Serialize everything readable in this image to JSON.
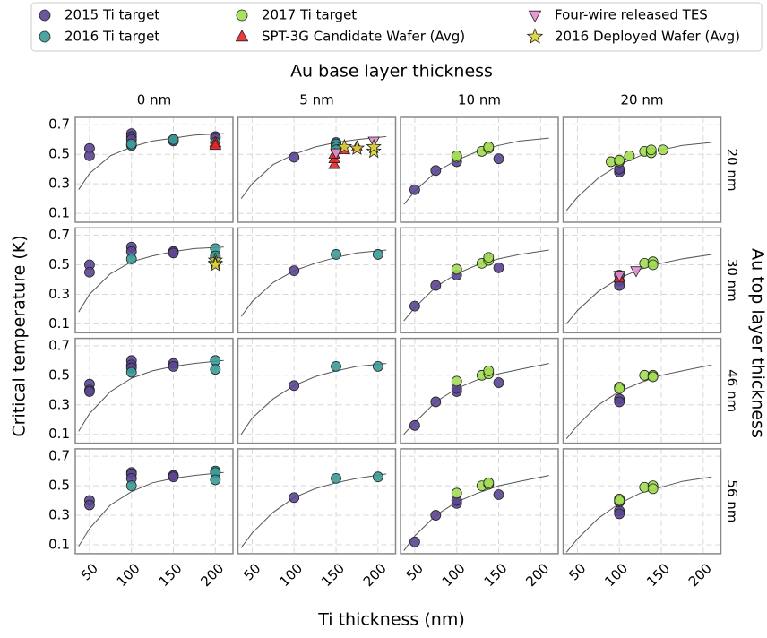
{
  "chart_data": {
    "type": "scatter",
    "col_title": "Au base layer thickness",
    "row_title": "Au top layer thickness",
    "xlabel": "Ti thickness (nm)",
    "ylabel": "Critical temperature (K)",
    "columns": [
      "0 nm",
      "5 nm",
      "10 nm",
      "20 nm"
    ],
    "rows": [
      "20 nm",
      "30 nm",
      "46 nm",
      "56 nm"
    ],
    "xlim": [
      33,
      221
    ],
    "xticks": [
      50,
      100,
      150,
      200
    ],
    "ylim": [
      0.04,
      0.75
    ],
    "yticks": [
      0.1,
      0.3,
      0.5,
      0.7
    ],
    "grid": true,
    "legend": "top",
    "fit_color": "#555555",
    "series": [
      {
        "name": "2015 Ti target",
        "color": "#5b4691",
        "marker": "circle"
      },
      {
        "name": "2016 Ti target",
        "color": "#3a9b98",
        "marker": "circle"
      },
      {
        "name": "2017 Ti target",
        "color": "#a2dd52",
        "marker": "circle"
      },
      {
        "name": "SPT-3G Candidate Wafer (Avg)",
        "color": "#e8262a",
        "marker": "triangle-up"
      },
      {
        "name": "Four-wire released TES",
        "color": "#e48fd2",
        "marker": "triangle-down"
      },
      {
        "name": "2016 Deployed Wafer (Avg)",
        "color": "#d8d23a",
        "marker": "star"
      }
    ],
    "fit_x": [
      37,
      50,
      75,
      100,
      125,
      150,
      175,
      210
    ],
    "panels": [
      {
        "fit": [
          0.26,
          0.37,
          0.49,
          0.55,
          0.59,
          0.61,
          0.63,
          0.64
        ],
        "points": [
          {
            "x": [
              50,
              50,
              100,
              100,
              100,
              150,
              150,
              200,
              200
            ],
            "y": [
              0.54,
              0.49,
              0.64,
              0.62,
              0.6,
              0.6,
              0.59,
              0.62,
              0.61
            ]
          },
          {
            "x": [
              100,
              100,
              150,
              200
            ],
            "y": [
              0.56,
              0.57,
              0.6,
              0.58
            ]
          },
          {
            "x": [],
            "y": []
          },
          {
            "x": [
              200,
              200,
              200
            ],
            "y": [
              0.57,
              0.58,
              0.56
            ]
          },
          {
            "x": [],
            "y": []
          },
          {
            "x": [],
            "y": []
          }
        ]
      },
      {
        "fit": [
          0.2,
          0.3,
          0.43,
          0.5,
          0.55,
          0.58,
          0.6,
          0.62
        ],
        "points": [
          {
            "x": [
              100,
              150,
              150
            ],
            "y": [
              0.48,
              0.58,
              0.56
            ]
          },
          {
            "x": [
              150,
              150,
              150
            ],
            "y": [
              0.57,
              0.55,
              0.53
            ]
          },
          {
            "x": [],
            "y": []
          },
          {
            "x": [
              148,
              148,
              148,
              160,
              175
            ],
            "y": [
              0.43,
              0.47,
              0.5,
              0.53,
              0.55
            ]
          },
          {
            "x": [
              150,
              195
            ],
            "y": [
              0.51,
              0.59
            ]
          },
          {
            "x": [
              160,
              175,
              195,
              195
            ],
            "y": [
              0.55,
              0.54,
              0.52,
              0.55
            ]
          }
        ]
      },
      {
        "fit": [
          0.16,
          0.25,
          0.38,
          0.46,
          0.52,
          0.56,
          0.59,
          0.61
        ],
        "points": [
          {
            "x": [
              50,
              75,
              100,
              150
            ],
            "y": [
              0.26,
              0.39,
              0.45,
              0.47
            ]
          },
          {
            "x": [],
            "y": []
          },
          {
            "x": [
              100,
              100,
              130,
              138,
              138
            ],
            "y": [
              0.48,
              0.49,
              0.52,
              0.54,
              0.55
            ]
          },
          {
            "x": [],
            "y": []
          },
          {
            "x": [],
            "y": []
          },
          {
            "x": [],
            "y": []
          }
        ]
      },
      {
        "fit": [
          0.12,
          0.21,
          0.34,
          0.43,
          0.49,
          0.53,
          0.56,
          0.58
        ],
        "points": [
          {
            "x": [
              100,
              100
            ],
            "y": [
              0.38,
              0.4
            ]
          },
          {
            "x": [],
            "y": []
          },
          {
            "x": [
              90,
              100,
              100,
              112,
              130,
              138,
              138,
              152
            ],
            "y": [
              0.45,
              0.45,
              0.46,
              0.49,
              0.52,
              0.51,
              0.53,
              0.53
            ]
          },
          {
            "x": [],
            "y": []
          },
          {
            "x": [],
            "y": []
          },
          {
            "x": [],
            "y": []
          }
        ]
      },
      {
        "fit": [
          0.18,
          0.3,
          0.44,
          0.52,
          0.56,
          0.59,
          0.61,
          0.62
        ],
        "points": [
          {
            "x": [
              50,
              50,
              100,
              100,
              150,
              150,
              200
            ],
            "y": [
              0.5,
              0.45,
              0.62,
              0.59,
              0.59,
              0.58,
              0.55
            ]
          },
          {
            "x": [
              100,
              200,
              200
            ],
            "y": [
              0.54,
              0.61,
              0.56
            ]
          },
          {
            "x": [],
            "y": []
          },
          {
            "x": [],
            "y": []
          },
          {
            "x": [],
            "y": []
          },
          {
            "x": [
              200,
              200,
              200
            ],
            "y": [
              0.53,
              0.51,
              0.5
            ]
          }
        ]
      },
      {
        "fit": [
          0.15,
          0.25,
          0.38,
          0.46,
          0.51,
          0.55,
          0.58,
          0.6
        ],
        "points": [
          {
            "x": [
              100
            ],
            "y": [
              0.46
            ]
          },
          {
            "x": [
              150,
              200
            ],
            "y": [
              0.57,
              0.57
            ]
          },
          {
            "x": [],
            "y": []
          },
          {
            "x": [],
            "y": []
          },
          {
            "x": [],
            "y": []
          },
          {
            "x": [],
            "y": []
          }
        ]
      },
      {
        "fit": [
          0.12,
          0.21,
          0.35,
          0.44,
          0.5,
          0.54,
          0.57,
          0.6
        ],
        "points": [
          {
            "x": [
              50,
              75,
              100,
              150
            ],
            "y": [
              0.22,
              0.36,
              0.43,
              0.48
            ]
          },
          {
            "x": [],
            "y": []
          },
          {
            "x": [
              100,
              130,
              138,
              138
            ],
            "y": [
              0.47,
              0.51,
              0.53,
              0.55
            ]
          },
          {
            "x": [],
            "y": []
          },
          {
            "x": [],
            "y": []
          },
          {
            "x": [],
            "y": []
          }
        ]
      },
      {
        "fit": [
          0.1,
          0.19,
          0.32,
          0.41,
          0.47,
          0.51,
          0.54,
          0.57
        ],
        "points": [
          {
            "x": [
              100,
              100,
              100
            ],
            "y": [
              0.43,
              0.39,
              0.36
            ]
          },
          {
            "x": [],
            "y": []
          },
          {
            "x": [
              130,
              140,
              140
            ],
            "y": [
              0.51,
              0.52,
              0.5
            ]
          },
          {
            "x": [
              100
            ],
            "y": [
              0.41
            ]
          },
          {
            "x": [
              100,
              120
            ],
            "y": [
              0.43,
              0.46
            ]
          },
          {
            "x": [],
            "y": []
          }
        ]
      },
      {
        "fit": [
          0.12,
          0.24,
          0.39,
          0.48,
          0.53,
          0.56,
          0.58,
          0.6
        ],
        "points": [
          {
            "x": [
              50,
              50,
              50,
              100,
              100,
              100,
              150,
              150
            ],
            "y": [
              0.44,
              0.4,
              0.39,
              0.6,
              0.57,
              0.55,
              0.58,
              0.56
            ]
          },
          {
            "x": [
              100,
              200,
              200
            ],
            "y": [
              0.52,
              0.6,
              0.54
            ]
          },
          {
            "x": [],
            "y": []
          },
          {
            "x": [],
            "y": []
          },
          {
            "x": [],
            "y": []
          },
          {
            "x": [],
            "y": []
          }
        ]
      },
      {
        "fit": [
          0.1,
          0.21,
          0.34,
          0.43,
          0.49,
          0.53,
          0.56,
          0.58
        ],
        "points": [
          {
            "x": [
              100
            ],
            "y": [
              0.43
            ]
          },
          {
            "x": [
              150,
              200
            ],
            "y": [
              0.56,
              0.56
            ]
          },
          {
            "x": [],
            "y": []
          },
          {
            "x": [],
            "y": []
          },
          {
            "x": [],
            "y": []
          },
          {
            "x": [],
            "y": []
          }
        ]
      },
      {
        "fit": [
          0.1,
          0.18,
          0.32,
          0.41,
          0.47,
          0.51,
          0.54,
          0.58
        ],
        "points": [
          {
            "x": [
              50,
              75,
              100,
              100,
              150
            ],
            "y": [
              0.16,
              0.32,
              0.39,
              0.41,
              0.45
            ]
          },
          {
            "x": [],
            "y": []
          },
          {
            "x": [
              100,
              130,
              138,
              138
            ],
            "y": [
              0.46,
              0.5,
              0.51,
              0.53
            ]
          },
          {
            "x": [],
            "y": []
          },
          {
            "x": [],
            "y": []
          },
          {
            "x": [],
            "y": []
          }
        ]
      },
      {
        "fit": [
          0.07,
          0.16,
          0.3,
          0.39,
          0.45,
          0.5,
          0.53,
          0.57
        ],
        "points": [
          {
            "x": [
              100,
              100
            ],
            "y": [
              0.34,
              0.32
            ]
          },
          {
            "x": [],
            "y": []
          },
          {
            "x": [
              100,
              100,
              130,
              140,
              140
            ],
            "y": [
              0.42,
              0.41,
              0.5,
              0.5,
              0.49
            ]
          },
          {
            "x": [],
            "y": []
          },
          {
            "x": [],
            "y": []
          },
          {
            "x": [],
            "y": []
          }
        ]
      },
      {
        "fit": [
          0.09,
          0.21,
          0.37,
          0.46,
          0.52,
          0.55,
          0.57,
          0.59
        ],
        "points": [
          {
            "x": [
              50,
              50,
              100,
              100,
              100,
              150,
              150
            ],
            "y": [
              0.4,
              0.37,
              0.59,
              0.58,
              0.55,
              0.57,
              0.56
            ]
          },
          {
            "x": [
              100,
              200,
              200,
              200
            ],
            "y": [
              0.5,
              0.6,
              0.59,
              0.54
            ]
          },
          {
            "x": [],
            "y": []
          },
          {
            "x": [],
            "y": []
          },
          {
            "x": [],
            "y": []
          },
          {
            "x": [],
            "y": []
          }
        ]
      },
      {
        "fit": [
          0.08,
          0.18,
          0.32,
          0.42,
          0.48,
          0.52,
          0.55,
          0.58
        ],
        "points": [
          {
            "x": [
              100
            ],
            "y": [
              0.42
            ]
          },
          {
            "x": [
              150,
              200
            ],
            "y": [
              0.55,
              0.56
            ]
          },
          {
            "x": [],
            "y": []
          },
          {
            "x": [],
            "y": []
          },
          {
            "x": [],
            "y": []
          },
          {
            "x": [],
            "y": []
          }
        ]
      },
      {
        "fit": [
          0.06,
          0.16,
          0.3,
          0.39,
          0.45,
          0.5,
          0.53,
          0.57
        ],
        "points": [
          {
            "x": [
              50,
              75,
              100,
              100,
              150
            ],
            "y": [
              0.12,
              0.3,
              0.38,
              0.4,
              0.44
            ]
          },
          {
            "x": [],
            "y": []
          },
          {
            "x": [
              100,
              130,
              138,
              138
            ],
            "y": [
              0.45,
              0.5,
              0.51,
              0.52
            ]
          },
          {
            "x": [],
            "y": []
          },
          {
            "x": [],
            "y": []
          },
          {
            "x": [],
            "y": []
          }
        ]
      },
      {
        "fit": [
          0.05,
          0.14,
          0.28,
          0.38,
          0.45,
          0.49,
          0.53,
          0.56
        ],
        "points": [
          {
            "x": [
              100,
              100,
              100
            ],
            "y": [
              0.33,
              0.31,
              0.39
            ]
          },
          {
            "x": [],
            "y": []
          },
          {
            "x": [
              100,
              100,
              130,
              140,
              140
            ],
            "y": [
              0.41,
              0.4,
              0.49,
              0.5,
              0.48
            ]
          },
          {
            "x": [],
            "y": []
          },
          {
            "x": [],
            "y": []
          },
          {
            "x": [],
            "y": []
          }
        ]
      }
    ]
  }
}
